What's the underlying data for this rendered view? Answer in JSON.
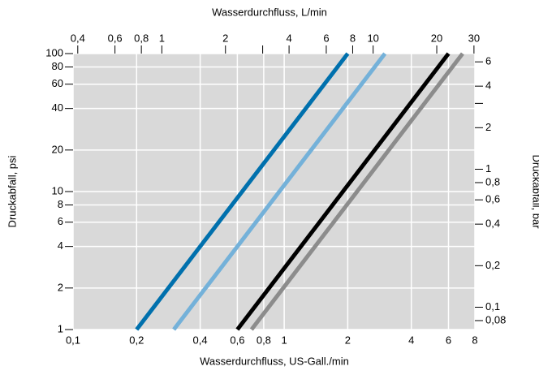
{
  "chart_data": {
    "type": "line",
    "xlabel": "Wasserdurchfluss, US-Gall./min",
    "x2label": "Wasserdurchfluss, L/min",
    "ylabel": "Druckabfall, psi",
    "y2label": "Druckabfall, bar",
    "xscale": "log",
    "yscale": "log",
    "grid": true,
    "background": "#d9d9d9",
    "xlim": [
      0.1,
      8
    ],
    "ylim": [
      1,
      100
    ],
    "x2lim": [
      0.38,
      30.3
    ],
    "y2lim": [
      0.0689,
      6.89
    ],
    "xticks": [
      {
        "value": 0.1,
        "label": "0,1"
      },
      {
        "value": 0.2,
        "label": "0,2"
      },
      {
        "value": 0.4,
        "label": "0,4"
      },
      {
        "value": 0.6,
        "label": "0,6"
      },
      {
        "value": 0.8,
        "label": "0,8"
      },
      1,
      2,
      4,
      6,
      8
    ],
    "x2ticks": [
      {
        "value": 0.4,
        "label": "0,4"
      },
      {
        "value": 0.6,
        "label": "0,6"
      },
      {
        "value": 0.8,
        "label": "0,8"
      },
      1,
      2,
      {
        "value": 3
      },
      4,
      6,
      8,
      10,
      20,
      30
    ],
    "yticks": [
      1,
      2,
      4,
      6,
      8,
      10,
      20,
      40,
      60,
      80,
      100
    ],
    "y2ticks": [
      {
        "value": 0.08,
        "label": "0,08"
      },
      {
        "value": 0.1,
        "label": "0,1"
      },
      {
        "value": 0.2,
        "label": "0,2"
      },
      {
        "value": 0.4,
        "label": "0,4"
      },
      {
        "value": 0.6,
        "label": "0,6"
      },
      {
        "value": 0.8,
        "label": "0,8"
      },
      1,
      2,
      {
        "value": 3
      },
      4,
      6
    ],
    "series": [
      {
        "color": "#0070ad",
        "x": [
          0.2,
          2
        ],
        "values": [
          1,
          100
        ]
      },
      {
        "color": "#74b1d9",
        "x": [
          0.3,
          3
        ],
        "values": [
          1,
          100
        ]
      },
      {
        "color": "#000000",
        "x": [
          0.6,
          6
        ],
        "values": [
          1,
          100
        ]
      },
      {
        "color": "#8c8c8c",
        "x": [
          0.7,
          7
        ],
        "values": [
          1,
          100
        ]
      }
    ]
  }
}
